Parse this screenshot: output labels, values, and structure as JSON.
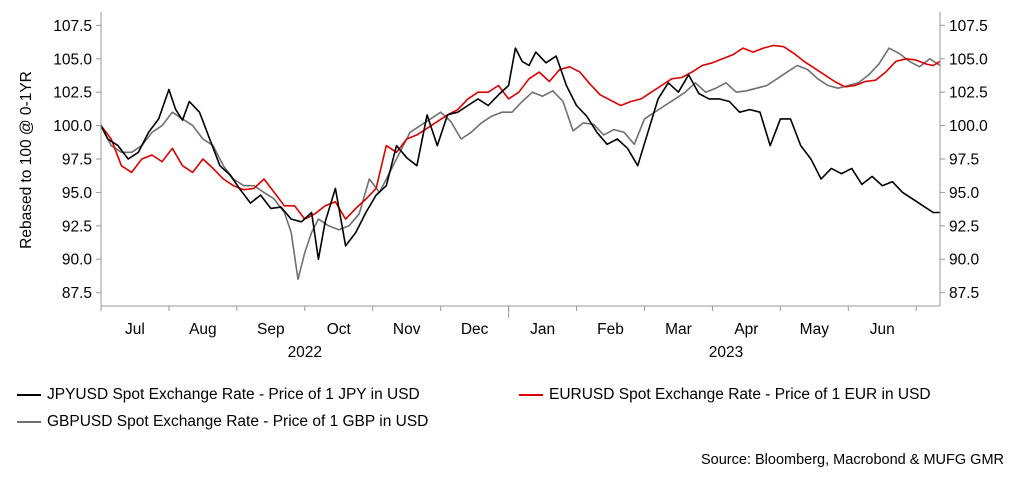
{
  "chart_data": {
    "type": "line",
    "ylabel": "Rebased to 100 @ 0-1YR",
    "ylim": [
      86.5,
      108.5
    ],
    "y_ticks": [
      "87.5",
      "90.0",
      "92.5",
      "95.0",
      "97.5",
      "100.0",
      "102.5",
      "105.0",
      "107.5"
    ],
    "month_labels": [
      "Jul",
      "Aug",
      "Sep",
      "Oct",
      "Nov",
      "Dec",
      "Jan",
      "Feb",
      "Mar",
      "Apr",
      "May",
      "Jun"
    ],
    "year_labels": [
      "2022",
      "2023"
    ],
    "x_range": [
      0,
      12.35
    ],
    "series": [
      {
        "name": "JPYUSD Spot Exchange Rate - Price of 1 JPY in USD",
        "color": "#000000",
        "x": [
          0,
          0.1,
          0.25,
          0.4,
          0.55,
          0.7,
          0.85,
          1.0,
          1.1,
          1.2,
          1.3,
          1.45,
          1.6,
          1.75,
          1.9,
          2.05,
          2.2,
          2.35,
          2.5,
          2.65,
          2.8,
          2.95,
          3.1,
          3.2,
          3.3,
          3.45,
          3.6,
          3.75,
          3.9,
          4.05,
          4.2,
          4.35,
          4.5,
          4.65,
          4.8,
          4.95,
          5.1,
          5.25,
          5.4,
          5.55,
          5.7,
          5.85,
          6.0,
          6.1,
          6.2,
          6.3,
          6.4,
          6.55,
          6.7,
          6.85,
          7.0,
          7.15,
          7.3,
          7.45,
          7.6,
          7.75,
          7.9,
          8.05,
          8.2,
          8.35,
          8.5,
          8.65,
          8.8,
          8.95,
          9.1,
          9.25,
          9.4,
          9.55,
          9.7,
          9.85,
          10.0,
          10.15,
          10.3,
          10.45,
          10.6,
          10.75,
          10.9,
          11.05,
          11.2,
          11.35,
          11.5,
          11.65,
          11.8,
          11.95,
          12.1,
          12.25,
          12.35
        ],
        "values": [
          100.0,
          99.0,
          98.5,
          97.5,
          98.0,
          99.5,
          100.5,
          102.7,
          101.2,
          100.4,
          101.8,
          101.0,
          99.0,
          97.0,
          96.3,
          95.2,
          94.2,
          94.8,
          93.8,
          93.9,
          93.0,
          92.8,
          93.5,
          90.0,
          92.8,
          95.3,
          91.0,
          92.0,
          93.5,
          94.8,
          95.5,
          98.5,
          97.6,
          97.0,
          100.8,
          98.5,
          100.8,
          101.0,
          101.5,
          102.0,
          101.5,
          102.3,
          103.0,
          105.8,
          104.8,
          104.5,
          105.5,
          104.7,
          105.2,
          103.0,
          101.5,
          100.7,
          99.5,
          98.6,
          99.0,
          98.3,
          97.0,
          99.5,
          102.0,
          103.2,
          102.5,
          103.8,
          102.4,
          102.0,
          102.0,
          101.8,
          101.0,
          101.2,
          101.0,
          98.5,
          100.5,
          100.5,
          98.5,
          97.5,
          96.0,
          96.8,
          96.4,
          96.8,
          95.6,
          96.2,
          95.5,
          95.8,
          95.0,
          94.5,
          94.0,
          93.5,
          93.5
        ]
      },
      {
        "name": "EURUSD Spot Exchange Rate - Price of 1 EUR in USD",
        "color": "#dd0000",
        "x": [
          0,
          0.15,
          0.3,
          0.45,
          0.6,
          0.75,
          0.9,
          1.05,
          1.2,
          1.35,
          1.5,
          1.65,
          1.8,
          1.95,
          2.1,
          2.25,
          2.4,
          2.55,
          2.7,
          2.85,
          3.0,
          3.15,
          3.3,
          3.45,
          3.6,
          3.75,
          3.9,
          4.05,
          4.2,
          4.35,
          4.5,
          4.65,
          4.8,
          4.95,
          5.1,
          5.25,
          5.4,
          5.55,
          5.7,
          5.85,
          6.0,
          6.15,
          6.3,
          6.45,
          6.6,
          6.75,
          6.9,
          7.05,
          7.2,
          7.35,
          7.5,
          7.65,
          7.8,
          7.95,
          8.1,
          8.25,
          8.4,
          8.55,
          8.7,
          8.85,
          9.0,
          9.15,
          9.3,
          9.45,
          9.6,
          9.75,
          9.9,
          10.05,
          10.2,
          10.35,
          10.5,
          10.65,
          10.8,
          10.95,
          11.1,
          11.25,
          11.4,
          11.55,
          11.7,
          11.85,
          12.0,
          12.15,
          12.25,
          12.35
        ],
        "values": [
          100.0,
          99.0,
          97.0,
          96.5,
          97.5,
          97.8,
          97.3,
          98.3,
          97.0,
          96.5,
          97.5,
          96.8,
          96.0,
          95.5,
          95.2,
          95.3,
          96.0,
          95.0,
          94.0,
          94.0,
          93.0,
          93.4,
          94.0,
          94.3,
          93.0,
          93.8,
          94.5,
          95.3,
          98.5,
          98.0,
          99.0,
          99.3,
          99.8,
          100.3,
          100.8,
          101.2,
          102.0,
          102.5,
          102.5,
          103.0,
          102.0,
          102.5,
          103.5,
          104.0,
          103.3,
          104.2,
          104.4,
          104.0,
          103.1,
          102.3,
          101.9,
          101.5,
          101.8,
          102.0,
          102.5,
          103.0,
          103.5,
          103.6,
          104.0,
          104.5,
          104.7,
          105.0,
          105.3,
          105.8,
          105.5,
          105.8,
          106.0,
          105.9,
          105.4,
          104.8,
          104.3,
          103.8,
          103.3,
          102.9,
          103.0,
          103.3,
          103.4,
          104.0,
          104.8,
          105.0,
          104.9,
          104.6,
          104.5,
          104.8
        ]
      },
      {
        "name": "GBPUSD Spot Exchange Rate - Price of 1 GBP in USD",
        "color": "#707070",
        "x": [
          0,
          0.15,
          0.3,
          0.45,
          0.6,
          0.75,
          0.9,
          1.05,
          1.2,
          1.35,
          1.5,
          1.65,
          1.8,
          1.95,
          2.1,
          2.25,
          2.4,
          2.55,
          2.7,
          2.8,
          2.9,
          3.0,
          3.1,
          3.2,
          3.35,
          3.5,
          3.65,
          3.8,
          3.95,
          4.1,
          4.25,
          4.4,
          4.55,
          4.7,
          4.85,
          5.0,
          5.15,
          5.3,
          5.45,
          5.6,
          5.75,
          5.9,
          6.05,
          6.2,
          6.35,
          6.5,
          6.65,
          6.8,
          6.95,
          7.1,
          7.25,
          7.4,
          7.55,
          7.7,
          7.85,
          8.0,
          8.15,
          8.3,
          8.45,
          8.6,
          8.75,
          8.9,
          9.05,
          9.2,
          9.35,
          9.5,
          9.65,
          9.8,
          9.95,
          10.1,
          10.25,
          10.4,
          10.55,
          10.7,
          10.85,
          11.0,
          11.15,
          11.3,
          11.45,
          11.6,
          11.75,
          11.9,
          12.05,
          12.2,
          12.35
        ],
        "values": [
          100.0,
          98.5,
          98.0,
          98.0,
          98.5,
          99.5,
          100.0,
          101.0,
          100.5,
          100.0,
          99.0,
          98.5,
          97.0,
          96.0,
          95.5,
          95.5,
          95.0,
          94.5,
          93.5,
          92.0,
          88.5,
          90.5,
          92.0,
          93.0,
          92.5,
          92.2,
          92.5,
          93.4,
          96.0,
          95.0,
          96.5,
          98.0,
          99.5,
          100.0,
          100.5,
          101.0,
          100.3,
          99.0,
          99.5,
          100.2,
          100.7,
          101.0,
          101.0,
          101.8,
          102.5,
          102.2,
          102.6,
          101.8,
          99.6,
          100.2,
          100.1,
          99.3,
          99.7,
          99.5,
          98.6,
          100.5,
          101.0,
          101.5,
          102.0,
          102.5,
          103.2,
          102.5,
          102.8,
          103.2,
          102.5,
          102.6,
          102.8,
          103.0,
          103.5,
          104.0,
          104.5,
          104.2,
          103.5,
          103.0,
          102.8,
          103.0,
          103.2,
          103.8,
          104.6,
          105.8,
          105.4,
          104.8,
          104.4,
          105.0,
          104.5
        ]
      }
    ]
  },
  "source_text": "Source: Bloomberg, Macrobond & MUFG GMR"
}
